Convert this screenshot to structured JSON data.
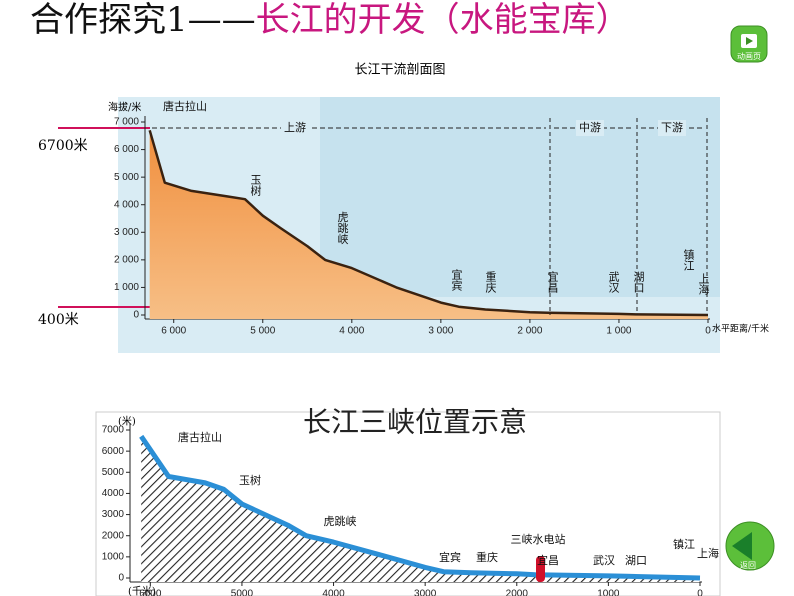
{
  "slide": {
    "title_black": "合作探究1——",
    "title_colored": "长江的开发（水能宝库）",
    "mark_high": "6700米",
    "mark_low": "400米",
    "button_animation": "动画页",
    "button_back": "返回"
  },
  "chart_data": [
    {
      "type": "area",
      "title": "长江干流剖面图",
      "y_label": "海拔/米",
      "x_label": "水平距离/千米",
      "x": [
        6270,
        6100,
        5800,
        5400,
        5200,
        5000,
        4800,
        4500,
        4300,
        4000,
        3500,
        3000,
        2800,
        2500,
        2000,
        1800,
        1000,
        800,
        0
      ],
      "values": [
        6700,
        4800,
        4500,
        4300,
        4200,
        3600,
        3150,
        2500,
        2000,
        1700,
        1000,
        450,
        300,
        200,
        100,
        80,
        40,
        20,
        0
      ],
      "color": "#f2a15c",
      "xlim": [
        6300,
        0
      ],
      "ylim": [
        0,
        7000
      ],
      "xticks": [
        {
          "value": 6000,
          "label": "6 000"
        },
        {
          "value": 5000,
          "label": "5 000"
        },
        {
          "value": 4000,
          "label": "4 000"
        },
        {
          "value": 3000,
          "label": "3 000"
        },
        {
          "value": 2000,
          "label": "2 000"
        },
        {
          "value": 1000,
          "label": "1 000"
        },
        0
      ],
      "yticks": [
        0,
        {
          "value": 1000,
          "label": "1 000"
        },
        {
          "value": 2000,
          "label": "2 000"
        },
        {
          "value": 3000,
          "label": "3 000"
        },
        {
          "value": 4000,
          "label": "4 000"
        },
        {
          "value": 5000,
          "label": "5 000"
        },
        {
          "value": 6000,
          "label": "6 000"
        },
        {
          "value": 7000,
          "label": "7 000"
        }
      ],
      "annotations": [
        "唐古拉山",
        "上游",
        "中游",
        "下游",
        "玉树",
        "虎跳峡",
        "宜宾",
        "重庆",
        "宜昌",
        "武汉",
        "湖口",
        "镇江",
        "上海"
      ]
    },
    {
      "type": "area",
      "title": "长江三峡位置示意",
      "y_label": "(米)",
      "x_label": "(千米)",
      "x": [
        6100,
        5800,
        5400,
        5200,
        5000,
        4800,
        4500,
        4300,
        4000,
        3500,
        3000,
        2800,
        2500,
        2000,
        1800,
        1000,
        800,
        0
      ],
      "values": [
        6700,
        4800,
        4500,
        4200,
        3500,
        3100,
        2500,
        2000,
        1700,
        1100,
        500,
        300,
        250,
        200,
        150,
        100,
        80,
        0
      ],
      "color": "#2b8fd6",
      "xlim": [
        6200,
        0
      ],
      "ylim": [
        0,
        7000
      ],
      "xticks": [
        6000,
        5000,
        4000,
        3000,
        2000,
        1000,
        0
      ],
      "yticks": [
        0,
        1000,
        2000,
        3000,
        4000,
        5000,
        6000,
        7000
      ],
      "annotations": [
        "唐古拉山",
        "玉树",
        "虎跳峡",
        "宜宾",
        "重庆",
        "三峡水电站",
        "宜昌",
        "武汉",
        "湖口",
        "镇江",
        "上海"
      ]
    }
  ]
}
